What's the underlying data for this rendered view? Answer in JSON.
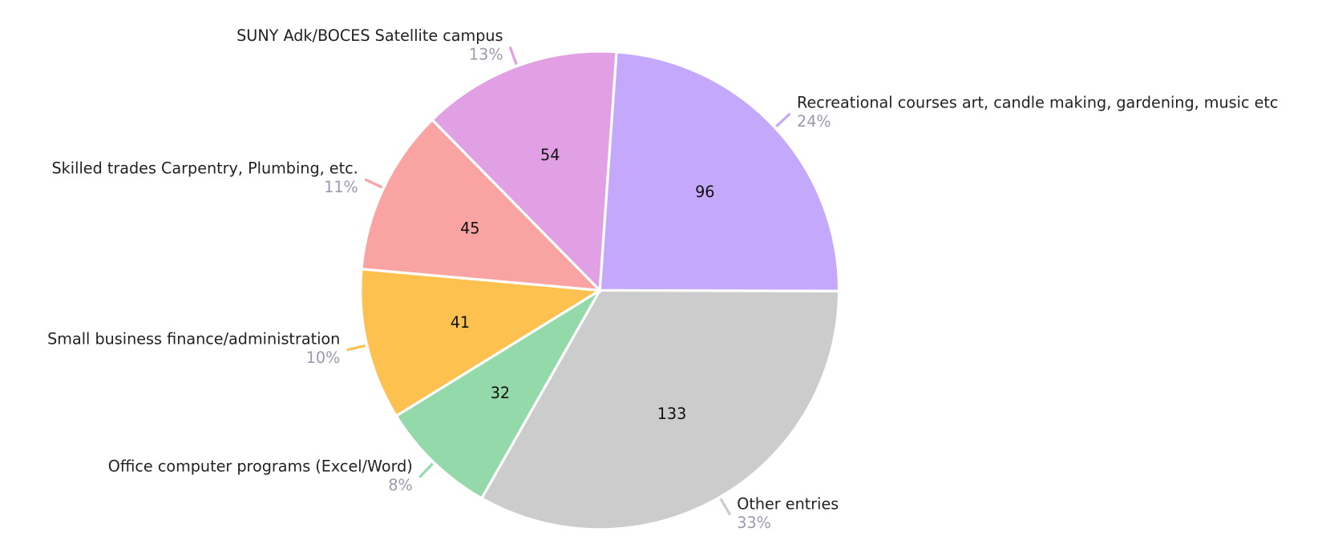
{
  "chart_data": {
    "type": "pie",
    "categories": [
      "Recreational courses art, candle making, gardening, music etc",
      "Other entries",
      "Office computer programs (Excel/Word)",
      "Small business finance/administration",
      "Skilled trades Carpentry, Plumbing, etc.",
      "SUNY Adk/BOCES Satellite campus"
    ],
    "values": [
      96,
      133,
      32,
      41,
      45,
      54
    ],
    "percent_labels": [
      "24%",
      "33%",
      "8%",
      "10%",
      "11%",
      "13%"
    ],
    "colors": [
      "#c4a8fb",
      "#cccccc",
      "#93d9aa",
      "#fdc150",
      "#f9a3a3",
      "#e2a0e4"
    ]
  }
}
